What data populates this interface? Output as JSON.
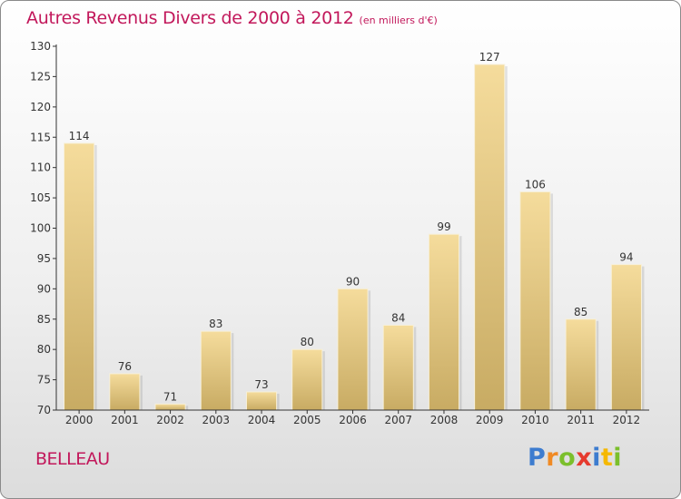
{
  "header": {
    "title": "Autres Revenus Divers de 2000 à 2012",
    "unit": "(en milliers d'€)"
  },
  "footer": {
    "commune": "BELLEAU",
    "logo": "Proxiti"
  },
  "colors": {
    "title": "#c2185b",
    "bar_top": "#f5dc9c",
    "bar_bottom": "#c8ab63",
    "axis": "#333333"
  },
  "chart_data": {
    "type": "bar",
    "title": "Autres Revenus Divers de 2000 à 2012",
    "xlabel": "",
    "ylabel": "",
    "categories": [
      "2000",
      "2001",
      "2002",
      "2003",
      "2004",
      "2005",
      "2006",
      "2007",
      "2008",
      "2009",
      "2010",
      "2011",
      "2012"
    ],
    "values": [
      114,
      76,
      71,
      83,
      73,
      80,
      90,
      84,
      99,
      127,
      106,
      85,
      94
    ],
    "ylim": [
      70,
      130
    ],
    "yticks": [
      70,
      75,
      80,
      85,
      90,
      95,
      100,
      105,
      110,
      115,
      120,
      125,
      130
    ],
    "data_labels": true,
    "grid": false
  }
}
